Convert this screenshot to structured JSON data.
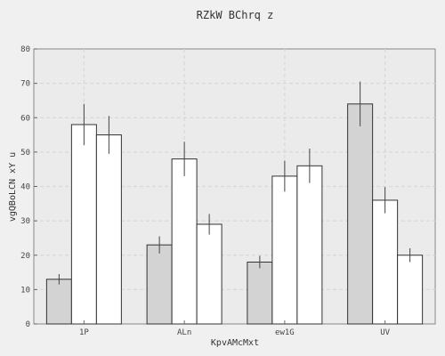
{
  "chart_data": {
    "type": "bar",
    "title": "RZkW BChrq z",
    "xlabel": "KpvAMcMxt",
    "ylabel": "vgQBoLCN xY u",
    "categories": [
      "1P",
      "ALn",
      "ew1G",
      "UV"
    ],
    "ylim": [
      0,
      80
    ],
    "yticks": [
      0,
      10,
      20,
      30,
      40,
      50,
      60,
      70,
      80
    ],
    "grid": true,
    "series": [
      {
        "color": "#d3d3d3",
        "values": [
          13,
          23,
          18,
          64
        ],
        "errors": [
          1.5,
          2.5,
          1.8,
          6.5
        ]
      },
      {
        "color": "#ffffff",
        "values": [
          58,
          48,
          43,
          36
        ],
        "errors": [
          6,
          5,
          4.5,
          3.8
        ]
      },
      {
        "color": "#ffffff",
        "values": [
          55,
          29,
          46,
          20
        ],
        "errors": [
          5.5,
          3,
          5,
          2
        ]
      }
    ]
  }
}
